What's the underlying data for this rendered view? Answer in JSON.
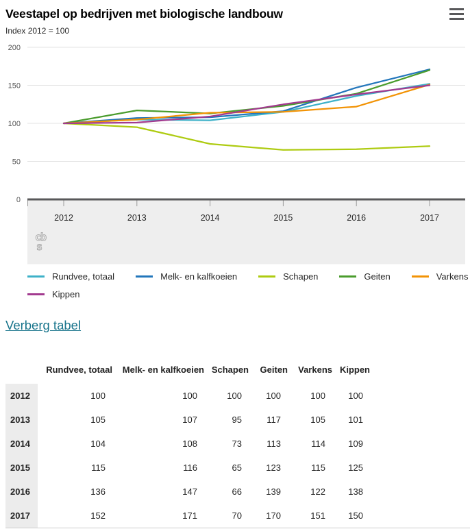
{
  "header": {
    "title": "Veestapel op bedrijven met biologische landbouw",
    "subtitle": "Index 2012 = 100"
  },
  "menu": {
    "label": "chart-options-menu"
  },
  "chart_data": {
    "type": "line",
    "title": "Veestapel op bedrijven met biologische landbouw",
    "subtitle": "Index 2012 = 100",
    "x": [
      "2012",
      "2013",
      "2014",
      "2015",
      "2016",
      "2017"
    ],
    "xlabel": "",
    "ylabel": "Index 2012 = 100",
    "ylim": [
      0,
      200
    ],
    "yticks": [
      0,
      50,
      100,
      150,
      200
    ],
    "grid": true,
    "legend_position": "bottom",
    "series": [
      {
        "name": "Rundvee, totaal",
        "color": "#3eb1c8",
        "values": [
          100,
          105,
          104,
          115,
          136,
          152
        ]
      },
      {
        "name": "Melk- en kalfkoeien",
        "color": "#2276bb",
        "values": [
          100,
          107,
          108,
          116,
          147,
          171
        ]
      },
      {
        "name": "Schapen",
        "color": "#aecb11",
        "values": [
          100,
          95,
          73,
          65,
          66,
          70
        ]
      },
      {
        "name": "Geiten",
        "color": "#4a9c2d",
        "values": [
          100,
          117,
          113,
          123,
          139,
          170
        ]
      },
      {
        "name": "Varkens",
        "color": "#f29305",
        "values": [
          100,
          105,
          114,
          115,
          122,
          151
        ]
      },
      {
        "name": "Kippen",
        "color": "#a23a8f",
        "values": [
          100,
          101,
          109,
          125,
          138,
          150
        ]
      }
    ]
  },
  "branding": {
    "logo_text_top": "cb",
    "logo_text_bottom": "s"
  },
  "table_toggle": {
    "label": "Verberg tabel"
  },
  "table": {
    "corner": "",
    "columns": [
      "Rundvee, totaal",
      "Melk- en kalfkoeien",
      "Schapen",
      "Geiten",
      "Varkens",
      "Kippen"
    ],
    "rows": [
      {
        "year": "2012",
        "values": [
          100,
          100,
          100,
          100,
          100,
          100
        ]
      },
      {
        "year": "2013",
        "values": [
          105,
          107,
          95,
          117,
          105,
          101
        ]
      },
      {
        "year": "2014",
        "values": [
          104,
          108,
          73,
          113,
          114,
          109
        ]
      },
      {
        "year": "2015",
        "values": [
          115,
          116,
          65,
          123,
          115,
          125
        ]
      },
      {
        "year": "2016",
        "values": [
          136,
          147,
          66,
          139,
          122,
          138
        ]
      },
      {
        "year": "2017",
        "values": [
          152,
          171,
          70,
          170,
          151,
          150
        ]
      }
    ]
  },
  "colors": {
    "link": "#19758c",
    "axis": "#58585a",
    "grid": "#e3e3e3",
    "band": "#eeeeee",
    "tick": "#999999",
    "logo": "#a6a6a6",
    "row_header_bg": "#ececec",
    "table_border": "#cccccc"
  }
}
